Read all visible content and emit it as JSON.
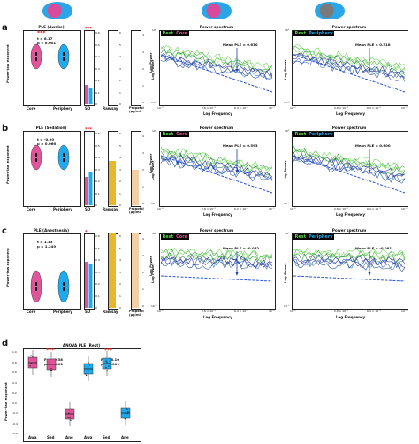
{
  "colors": {
    "core": "#e0559a",
    "periphery": "#1eaaee",
    "ramsay": "#e8b72c",
    "propofol": "#f2cfa6",
    "green_rest": "#5fd34a",
    "blue_core": "#2b3aa8"
  },
  "brains": [
    "brain-core-magenta",
    "brain-core-magenta-right",
    "brain-periphery-grey"
  ],
  "legend": {
    "rest": "Rest",
    "core": "Core",
    "periphery": "Periphery"
  },
  "spectrum": {
    "title": "Power spectrum",
    "xlabel": "Log Frequency",
    "ylabel": "Log Power",
    "ytick_top": "10⁰",
    "ytick_bottom": "10⁻¹",
    "xticks": [
      "10⁻²",
      "2.8 × 10⁻²",
      "6.4 × 10⁻²",
      "10⁻¹"
    ]
  },
  "axes": {
    "ple_ylabel": "Power-law exponent",
    "sd_label": "SD",
    "ramsay_label": "Ramsay",
    "propofol_label": "Propofol (μg/ml)",
    "log_power": "Log Power",
    "core": "Core",
    "periphery": "Periphery"
  },
  "panels": [
    {
      "letter": "a",
      "title": "PLE (Awake)",
      "stars": "***",
      "stat_t": "t = 6.17",
      "stat_p": "p < 0.001",
      "sd_stars": "***",
      "mean_core": "Mean PLE = 0.630",
      "mean_peri": "Mean PLE = 0.518",
      "sd_ticks": [
        "0.6",
        "0.5",
        "0.4",
        "0.3",
        "0.2",
        "0.1",
        "0"
      ],
      "ramsay_ticks": [
        "6",
        "5",
        "4",
        "3",
        "2",
        "1",
        "0"
      ],
      "propofol_ticks": [
        "4",
        "3",
        "2",
        "1",
        "0"
      ]
    },
    {
      "letter": "b",
      "title": "PLE (Sedation)",
      "stars": "",
      "stat_t": "t = -0.20",
      "stat_p": "p = 0.066",
      "sd_stars": "***",
      "mean_core": "Mean PLE = 0.593",
      "mean_peri": "Mean PLE = 0.600",
      "sd_ticks": [
        "0.6",
        "0.5",
        "0.4",
        "0.3",
        "0.2",
        "0.1",
        "0"
      ],
      "ramsay_ticks": [
        "6",
        "5",
        "4",
        "3",
        "2",
        "1",
        "0"
      ],
      "propofol_ticks": [
        "4",
        "3",
        "2",
        "1",
        "0"
      ]
    },
    {
      "letter": "c",
      "title": "PLE (Anesthesia)",
      "stars": "",
      "stat_t": "t = 1.33",
      "stat_p": "p = 1.249",
      "sd_stars": "*",
      "mean_core": "Mean PLE = -0.052",
      "mean_peri": "Mean PLE = -0.081",
      "sd_ticks": [
        "0.6",
        "0.5",
        "0.4",
        "0.3",
        "0.2",
        "0.1",
        "0"
      ],
      "ramsay_ticks": [
        "6",
        "5",
        "4",
        "3",
        "2",
        "1",
        "0"
      ],
      "propofol_ticks": [
        "4",
        "3",
        "2",
        "1",
        "0"
      ]
    }
  ],
  "panel_d": {
    "letter": "d",
    "title": "ANOVA PLE (Rest)",
    "ylabel": "Power-law exponent",
    "left_stars": "***",
    "left_F": "F = 40.38",
    "left_p": "p < 0.001",
    "right_stars": "***",
    "right_F": "F = 46.10",
    "right_p": "p < 0.001",
    "yticks": [
      "1.0",
      "0.8",
      "0.6",
      "0.4",
      "0.2",
      "0.0",
      "-0.2",
      "-0.4",
      "-0.6"
    ],
    "xticks": [
      "Awa",
      "Sed",
      "Ane",
      "Awa",
      "Sed",
      "Ane"
    ]
  }
}
